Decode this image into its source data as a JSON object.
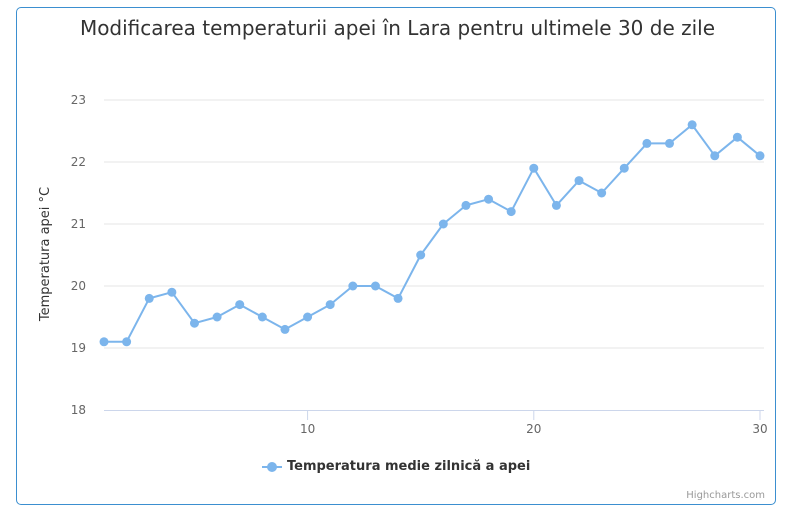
{
  "colors": {
    "series": "#7cb5ec",
    "border": "#3b8fd0",
    "grid": "#e6e6e6",
    "axis": "#ccd6eb",
    "text": "#333333",
    "tick": "#666666"
  },
  "credit": "Highcharts.com",
  "chart_data": {
    "type": "line",
    "title": "Modificarea temperaturii apei în Lara pentru ultimele 30 de zile",
    "xlabel": "",
    "ylabel": "Temperatura apei °C",
    "xlim": [
      1,
      30
    ],
    "ylim": [
      18,
      23
    ],
    "x_ticks": [
      10,
      20,
      30
    ],
    "y_ticks": [
      18,
      19,
      20,
      21,
      22,
      23
    ],
    "grid": true,
    "legend_position": "bottom-center",
    "series": [
      {
        "name": "Temperatura medie zilnică a apei",
        "x": [
          1,
          2,
          3,
          4,
          5,
          6,
          7,
          8,
          9,
          10,
          11,
          12,
          13,
          14,
          15,
          16,
          17,
          18,
          19,
          20,
          21,
          22,
          23,
          24,
          25,
          26,
          27,
          28,
          29,
          30
        ],
        "values": [
          19.1,
          19.1,
          19.8,
          19.9,
          19.4,
          19.5,
          19.7,
          19.5,
          19.3,
          19.5,
          19.7,
          20.0,
          20.0,
          19.8,
          20.5,
          21.0,
          21.3,
          21.4,
          21.2,
          21.9,
          21.3,
          21.7,
          21.5,
          21.9,
          22.3,
          22.3,
          22.6,
          22.1,
          22.4,
          22.1
        ]
      }
    ]
  }
}
